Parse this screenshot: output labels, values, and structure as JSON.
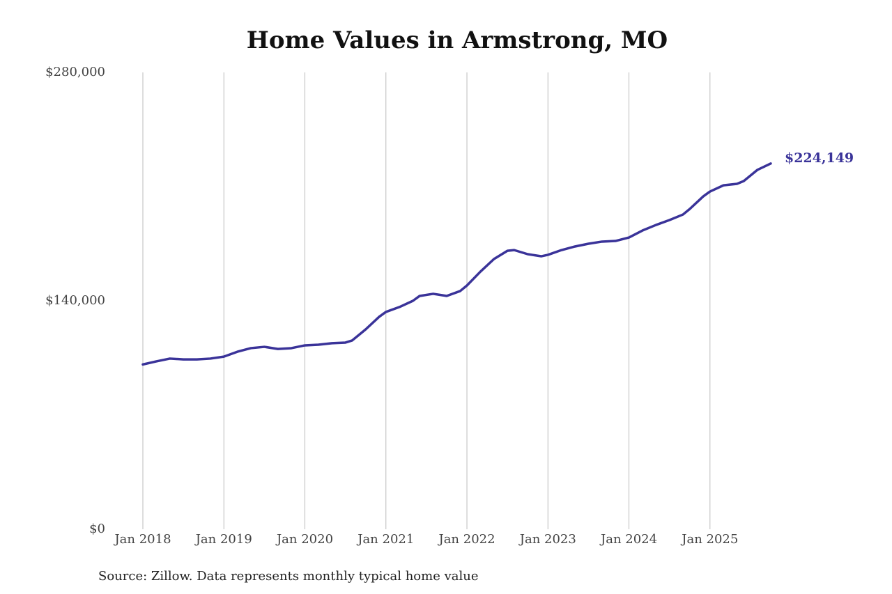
{
  "chart_data": {
    "type": "line",
    "title": "Home Values in Armstrong, MO",
    "source": "Source: Zillow. Data represents monthly typical home value",
    "x": [
      "2018-01",
      "2018-03",
      "2018-05",
      "2018-07",
      "2018-09",
      "2018-11",
      "2019-01",
      "2019-03",
      "2019-05",
      "2019-07",
      "2019-09",
      "2019-11",
      "2020-01",
      "2020-03",
      "2020-05",
      "2020-07",
      "2020-08",
      "2020-10",
      "2020-12",
      "2021-01",
      "2021-03",
      "2021-05",
      "2021-06",
      "2021-08",
      "2021-10",
      "2021-12",
      "2022-01",
      "2022-03",
      "2022-05",
      "2022-07",
      "2022-08",
      "2022-10",
      "2022-12",
      "2023-01",
      "2023-03",
      "2023-05",
      "2023-07",
      "2023-09",
      "2023-11",
      "2024-01",
      "2024-03",
      "2024-05",
      "2024-07",
      "2024-09",
      "2024-10",
      "2024-12",
      "2025-01",
      "2025-03",
      "2025-05",
      "2025-06",
      "2025-08",
      "2025-10"
    ],
    "series": [
      {
        "name": "Home value",
        "color": "#3a3399",
        "values": [
          101000,
          102900,
          104600,
          104100,
          104100,
          104600,
          105800,
          108800,
          111000,
          111800,
          110500,
          111000,
          112700,
          113100,
          114000,
          114400,
          115700,
          122500,
          130200,
          133200,
          136200,
          140000,
          143000,
          144300,
          143000,
          146000,
          149400,
          157900,
          165600,
          170700,
          171100,
          168600,
          167300,
          168200,
          171100,
          173300,
          175000,
          176300,
          176700,
          178800,
          183100,
          186500,
          189500,
          192900,
          196300,
          204000,
          207000,
          210800,
          211700,
          213400,
          220200,
          224149
        ],
        "value_labels": [
          null,
          null,
          null,
          null,
          null,
          null,
          null,
          null,
          null,
          null,
          null,
          null,
          null,
          null,
          null,
          null,
          null,
          null,
          null,
          null,
          null,
          null,
          null,
          null,
          null,
          null,
          null,
          null,
          null,
          null,
          null,
          null,
          null,
          null,
          null,
          null,
          null,
          null,
          null,
          null,
          null,
          null,
          null,
          null,
          null,
          null,
          null,
          null,
          null,
          null,
          null,
          "$224,149"
        ]
      }
    ],
    "xlim": [
      "2018-01",
      "2025-10"
    ],
    "xticks": [
      {
        "value": "2018-01",
        "label": "Jan 2018"
      },
      {
        "value": "2019-01",
        "label": "Jan 2019"
      },
      {
        "value": "2020-01",
        "label": "Jan 2020"
      },
      {
        "value": "2021-01",
        "label": "Jan 2021"
      },
      {
        "value": "2022-01",
        "label": "Jan 2022"
      },
      {
        "value": "2023-01",
        "label": "Jan 2023"
      },
      {
        "value": "2024-01",
        "label": "Jan 2024"
      },
      {
        "value": "2025-01",
        "label": "Jan 2025"
      }
    ],
    "ylim": [
      0,
      280000
    ],
    "yticks": [
      {
        "value": 0,
        "label": "$0"
      },
      {
        "value": 140000,
        "label": "$140,000"
      },
      {
        "value": 280000,
        "label": "$280,000"
      }
    ],
    "grid": "x"
  }
}
